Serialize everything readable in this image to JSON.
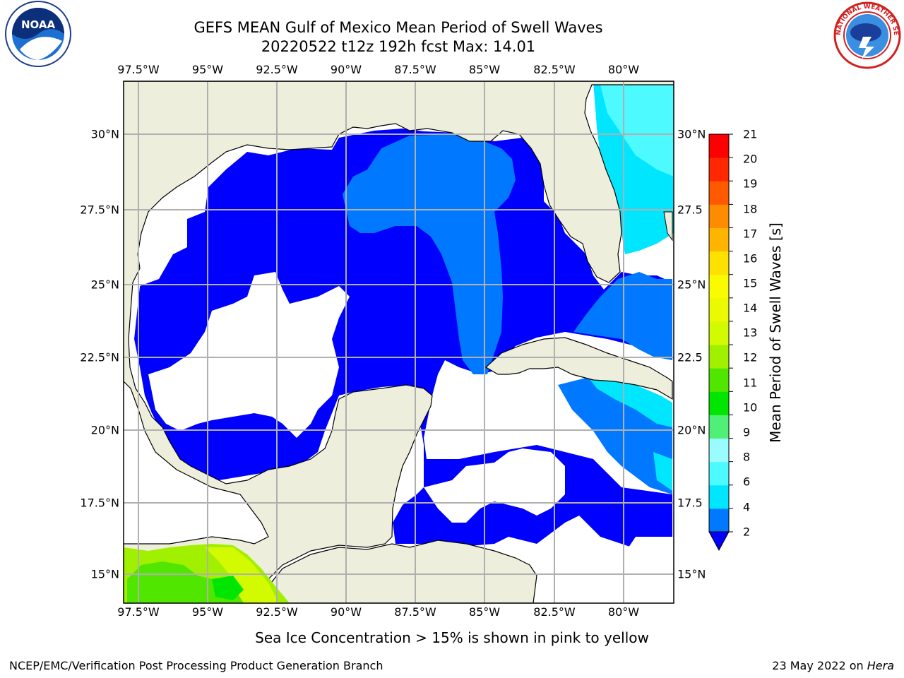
{
  "title": {
    "line1": "GEFS MEAN Gulf of Mexico Mean Period of Swell Waves",
    "line2": "20220522 t12z 192h fcst   Max: 14.01"
  },
  "map": {
    "lon_ticks": [
      "97.5°W",
      "95°W",
      "92.5°W",
      "90°W",
      "87.5°W",
      "85°W",
      "82.5°W",
      "80°W"
    ],
    "lat_ticks_left": [
      "30°N",
      "27.5°N",
      "25°N",
      "22.5°N",
      "20°N",
      "17.5°N",
      "15°N"
    ],
    "lat_ticks_right": [
      "30°N",
      "27.5",
      "25°N",
      "22.5",
      "20°N",
      "17.5",
      "15°N"
    ],
    "extent": {
      "lon": [
        -98,
        -78.1
      ],
      "lat": [
        14,
        31.8
      ]
    },
    "colors": {
      "land": "#eeeedc",
      "ocean_nodata": "#ffffff",
      "grid": "#b0b0b0",
      "coast": "#000000"
    }
  },
  "colorbar": {
    "label": "Mean Period of Swell Waves [s]",
    "ticks": [
      "21",
      "20",
      "19",
      "18",
      "17",
      "16",
      "15",
      "14",
      "13",
      "12",
      "11",
      "10",
      "9",
      "8",
      "6",
      "4",
      "2"
    ],
    "colors": [
      "#0000ff",
      "#0078ff",
      "#00e6ff",
      "#4cfaff",
      "#9afcff",
      "#50f078",
      "#00e600",
      "#50e600",
      "#a0f000",
      "#d2fa00",
      "#ebfa00",
      "#fafa00",
      "#ffe100",
      "#ffb400",
      "#ff8c00",
      "#ff5a00",
      "#ff2800",
      "#ff0000"
    ]
  },
  "note": "Sea Ice Concentration > 15% is shown in pink to yellow",
  "footer": {
    "left": "NCEP/EMC/Verification Post Processing Product Generation Branch",
    "right_prefix": "23 May 2022 on ",
    "right_host": "Hera"
  },
  "logos": {
    "left": "noaa-logo",
    "right": "national-weather-service-logo",
    "left_text": "NOAA",
    "right_text": "NATIONAL WEATHER SERVICE"
  }
}
